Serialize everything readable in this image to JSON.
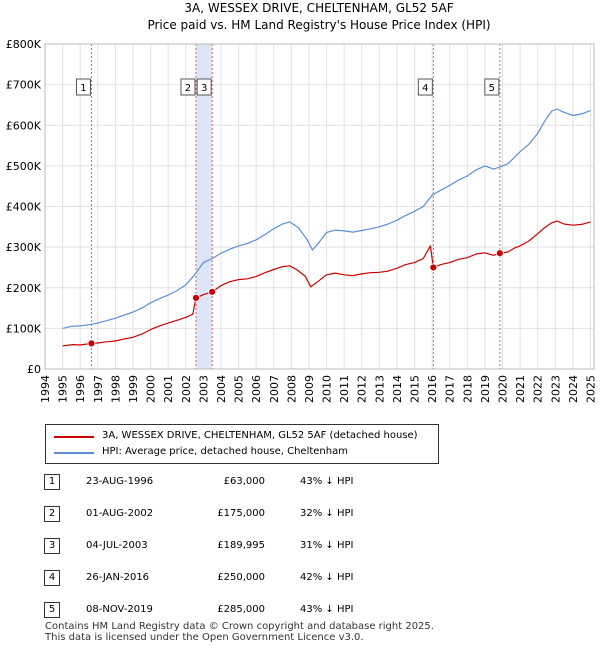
{
  "chart_data": {
    "type": "line",
    "title": "3A, WESSEX DRIVE, CHELTENHAM, GL52 5AF",
    "subtitle": "Price paid vs. HM Land Registry's House Price Index (HPI)",
    "xlim": [
      1994,
      2025.2
    ],
    "ylim": [
      0,
      800000
    ],
    "x_ticks": [
      1994,
      1995,
      1996,
      1997,
      1998,
      1999,
      2000,
      2001,
      2002,
      2003,
      2004,
      2005,
      2006,
      2007,
      2008,
      2009,
      2010,
      2011,
      2012,
      2013,
      2014,
      2015,
      2016,
      2017,
      2018,
      2019,
      2020,
      2021,
      2022,
      2023,
      2024,
      2025
    ],
    "y_ticks": [
      0,
      100000,
      200000,
      300000,
      400000,
      500000,
      600000,
      700000,
      800000
    ],
    "y_tick_labels": [
      "£0",
      "£100K",
      "£200K",
      "£300K",
      "£400K",
      "£500K",
      "£600K",
      "£700K",
      "£800K"
    ],
    "grid": true,
    "series": [
      {
        "name": "3A, WESSEX DRIVE, CHELTENHAM, GL52 5AF (detached house)",
        "color": "#cc0000",
        "points": [
          [
            1995.0,
            57000
          ],
          [
            1995.6,
            60000
          ],
          [
            1996.0,
            59000
          ],
          [
            1996.64,
            63000
          ],
          [
            1997.0,
            64000
          ],
          [
            1997.5,
            67000
          ],
          [
            1998.0,
            69000
          ],
          [
            1998.5,
            74000
          ],
          [
            1999.0,
            78000
          ],
          [
            1999.5,
            86000
          ],
          [
            2000.0,
            97000
          ],
          [
            2000.5,
            106000
          ],
          [
            2001.0,
            113000
          ],
          [
            2001.5,
            120000
          ],
          [
            2002.0,
            127000
          ],
          [
            2002.4,
            135000
          ],
          [
            2002.58,
            175000
          ],
          [
            2003.0,
            183000
          ],
          [
            2003.5,
            189995
          ],
          [
            2004.0,
            205000
          ],
          [
            2004.5,
            215000
          ],
          [
            2005.0,
            220000
          ],
          [
            2005.5,
            222000
          ],
          [
            2006.0,
            228000
          ],
          [
            2006.5,
            237000
          ],
          [
            2007.0,
            245000
          ],
          [
            2007.5,
            252000
          ],
          [
            2007.9,
            254000
          ],
          [
            2008.3,
            245000
          ],
          [
            2008.8,
            228000
          ],
          [
            2009.1,
            202000
          ],
          [
            2009.5,
            215000
          ],
          [
            2010.0,
            232000
          ],
          [
            2010.5,
            236000
          ],
          [
            2011.0,
            232000
          ],
          [
            2011.5,
            230000
          ],
          [
            2012.0,
            234000
          ],
          [
            2012.5,
            237000
          ],
          [
            2013.0,
            238000
          ],
          [
            2013.5,
            241000
          ],
          [
            2014.0,
            248000
          ],
          [
            2014.5,
            257000
          ],
          [
            2015.0,
            262000
          ],
          [
            2015.5,
            272000
          ],
          [
            2015.9,
            303000
          ],
          [
            2016.07,
            250000
          ],
          [
            2016.5,
            257000
          ],
          [
            2017.0,
            262000
          ],
          [
            2017.5,
            270000
          ],
          [
            2018.0,
            274000
          ],
          [
            2018.5,
            283000
          ],
          [
            2019.0,
            286000
          ],
          [
            2019.5,
            280000
          ],
          [
            2019.85,
            285000
          ],
          [
            2020.3,
            288000
          ],
          [
            2020.7,
            298000
          ],
          [
            2021.0,
            303000
          ],
          [
            2021.5,
            315000
          ],
          [
            2022.0,
            333000
          ],
          [
            2022.4,
            348000
          ],
          [
            2022.8,
            360000
          ],
          [
            2023.1,
            364000
          ],
          [
            2023.5,
            357000
          ],
          [
            2024.0,
            354000
          ],
          [
            2024.5,
            356000
          ],
          [
            2025.0,
            362000
          ]
        ]
      },
      {
        "name": "HPI: Average price, detached house, Cheltenham",
        "color": "#5b8fd6",
        "points": [
          [
            1995.0,
            100000
          ],
          [
            1995.5,
            105000
          ],
          [
            1996.0,
            106000
          ],
          [
            1996.5,
            109000
          ],
          [
            1997.0,
            113000
          ],
          [
            1997.5,
            119000
          ],
          [
            1998.0,
            125000
          ],
          [
            1998.5,
            133000
          ],
          [
            1999.0,
            140000
          ],
          [
            1999.5,
            150000
          ],
          [
            2000.0,
            163000
          ],
          [
            2000.5,
            173000
          ],
          [
            2001.0,
            182000
          ],
          [
            2001.5,
            193000
          ],
          [
            2002.0,
            207000
          ],
          [
            2002.5,
            232000
          ],
          [
            2003.0,
            262000
          ],
          [
            2003.5,
            272000
          ],
          [
            2004.0,
            285000
          ],
          [
            2004.5,
            295000
          ],
          [
            2005.0,
            303000
          ],
          [
            2005.5,
            309000
          ],
          [
            2006.0,
            318000
          ],
          [
            2006.5,
            331000
          ],
          [
            2007.0,
            345000
          ],
          [
            2007.5,
            357000
          ],
          [
            2007.9,
            362000
          ],
          [
            2008.4,
            348000
          ],
          [
            2008.9,
            318000
          ],
          [
            2009.2,
            293000
          ],
          [
            2009.6,
            313000
          ],
          [
            2010.0,
            336000
          ],
          [
            2010.5,
            342000
          ],
          [
            2011.0,
            340000
          ],
          [
            2011.5,
            337000
          ],
          [
            2012.0,
            341000
          ],
          [
            2012.5,
            345000
          ],
          [
            2013.0,
            350000
          ],
          [
            2013.5,
            357000
          ],
          [
            2014.0,
            366000
          ],
          [
            2014.5,
            378000
          ],
          [
            2015.0,
            388000
          ],
          [
            2015.5,
            400000
          ],
          [
            2016.0,
            428000
          ],
          [
            2016.5,
            440000
          ],
          [
            2017.0,
            452000
          ],
          [
            2017.5,
            465000
          ],
          [
            2018.0,
            475000
          ],
          [
            2018.5,
            490000
          ],
          [
            2019.0,
            500000
          ],
          [
            2019.5,
            492000
          ],
          [
            2019.85,
            497000
          ],
          [
            2020.3,
            505000
          ],
          [
            2020.7,
            522000
          ],
          [
            2021.0,
            535000
          ],
          [
            2021.5,
            553000
          ],
          [
            2022.0,
            580000
          ],
          [
            2022.4,
            610000
          ],
          [
            2022.8,
            635000
          ],
          [
            2023.1,
            640000
          ],
          [
            2023.5,
            632000
          ],
          [
            2024.0,
            624000
          ],
          [
            2024.5,
            628000
          ],
          [
            2025.0,
            636000
          ]
        ]
      }
    ],
    "sales": [
      {
        "label": "1",
        "x": 1996.64,
        "price": 63000,
        "date": "23-AUG-1996",
        "price_text": "£63,000",
        "hpi": "43% ↓ HPI"
      },
      {
        "label": "2",
        "x": 2002.58,
        "price": 175000,
        "date": "01-AUG-2002",
        "price_text": "£175,000",
        "hpi": "32% ↓ HPI"
      },
      {
        "label": "3",
        "x": 2003.5,
        "price": 189995,
        "date": "04-JUL-2003",
        "price_text": "£189,995",
        "hpi": "31% ↓ HPI"
      },
      {
        "label": "4",
        "x": 2016.07,
        "price": 250000,
        "date": "26-JAN-2016",
        "price_text": "£250,000",
        "hpi": "42% ↓ HPI"
      },
      {
        "label": "5",
        "x": 2019.85,
        "price": 285000,
        "date": "08-NOV-2019",
        "price_text": "£285,000",
        "hpi": "43% ↓ HPI"
      }
    ]
  },
  "legend": {
    "red_label": "3A, WESSEX DRIVE, CHELTENHAM, GL52 5AF (detached house)",
    "blue_label": "HPI: Average price, detached house, Cheltenham"
  },
  "colors": {
    "red": "#cc0000",
    "blue": "#5b8fd6",
    "shade": "#dbe7f7"
  },
  "footer": {
    "line1": "Contains HM Land Registry data © Crown copyright and database right 2025.",
    "line2": "This data is licensed under the Open Government Licence v3.0."
  }
}
